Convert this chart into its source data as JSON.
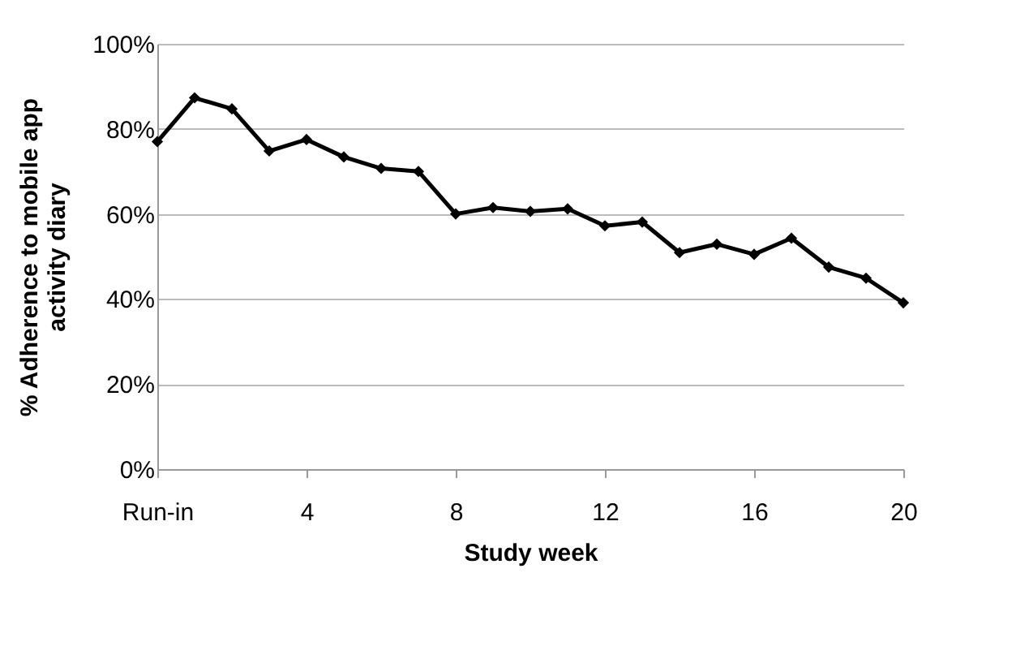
{
  "chart_data": {
    "type": "line",
    "xlabel": "Study week",
    "ylabel": "% Adherence to mobile app activity diary",
    "x": [
      0,
      1,
      2,
      3,
      4,
      5,
      6,
      7,
      8,
      9,
      10,
      11,
      12,
      13,
      14,
      15,
      16,
      17,
      18,
      19,
      20
    ],
    "series": [
      {
        "color": "#000000",
        "values": [
          77,
          87.3,
          84.7,
          74.8,
          77.5,
          73.4,
          70.7,
          70,
          60,
          61.5,
          60.6,
          61.2,
          57.2,
          58.1,
          50.9,
          52.9,
          50.5,
          54.3,
          47.5,
          44.9,
          39.1
        ]
      }
    ],
    "xlim": [
      0,
      20
    ],
    "xticks": [
      {
        "value": 0,
        "label": "Run-in"
      },
      4,
      8,
      12,
      16,
      20
    ],
    "ylim": [
      0,
      100
    ],
    "yticks": [
      {
        "value": 0,
        "label": "0%"
      },
      {
        "value": 20,
        "label": "20%"
      },
      {
        "value": 40,
        "label": "40%"
      },
      {
        "value": 60,
        "label": "60%"
      },
      {
        "value": 80,
        "label": "80%"
      },
      {
        "value": 100,
        "label": "100%"
      }
    ],
    "grid": "y",
    "marker": "diamond",
    "line_style": "solid"
  }
}
